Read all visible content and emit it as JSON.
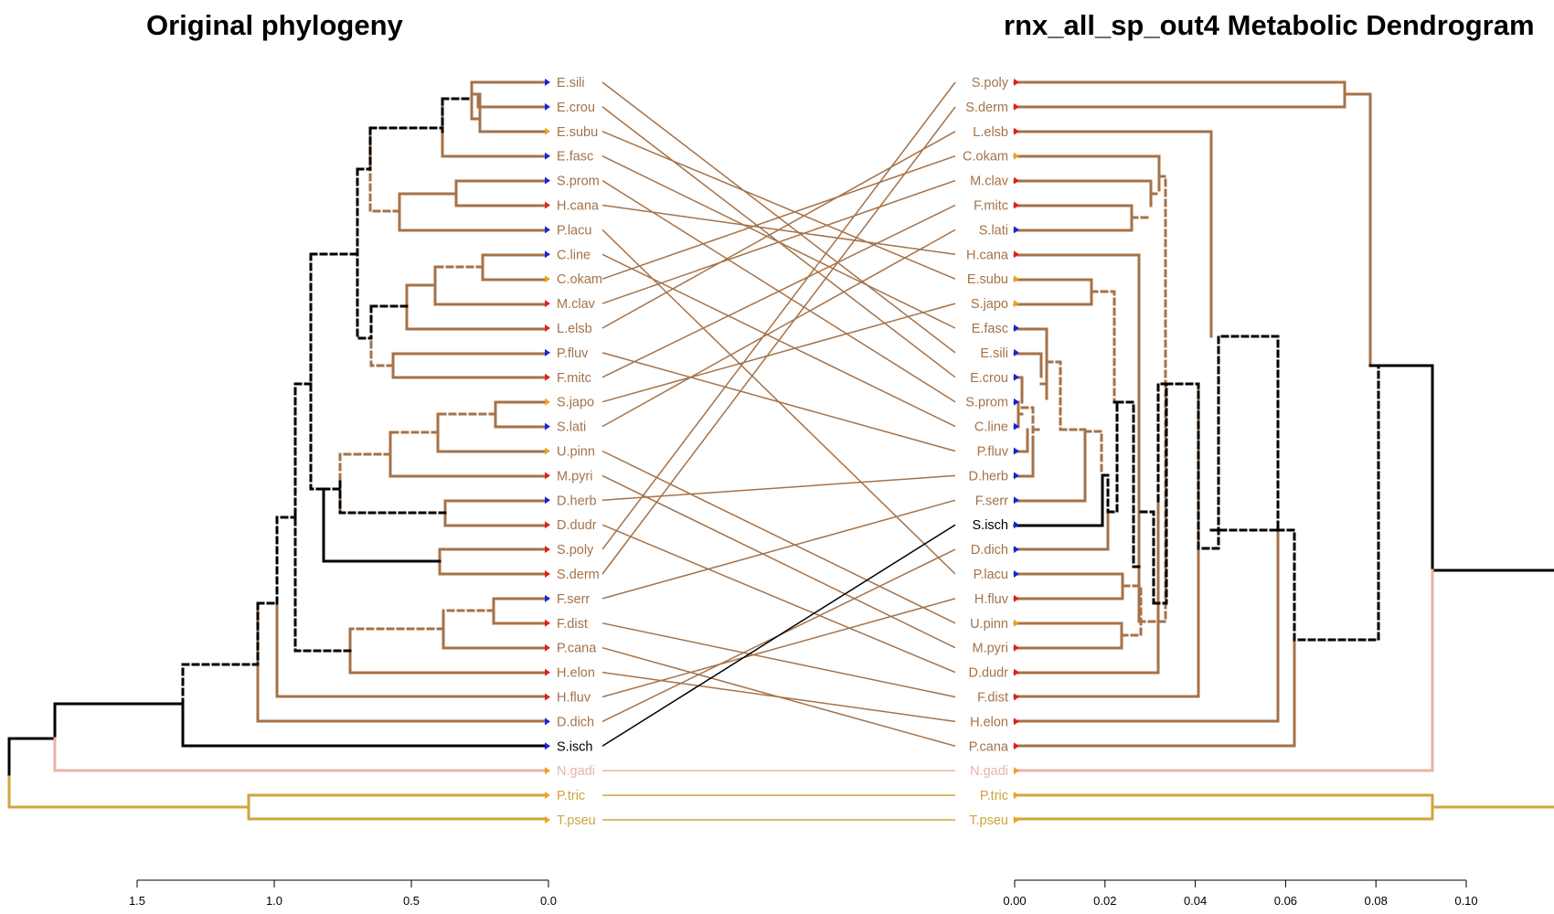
{
  "left": {
    "title": "Original phylogeny",
    "axis_ticks": [
      "1.5",
      "1.0",
      "0.5",
      "0.0"
    ]
  },
  "right": {
    "title": "rnx_all_sp_out4 Metabolic Dendrogram",
    "axis_ticks": [
      "0.00",
      "0.02",
      "0.04",
      "0.06",
      "0.08",
      "0.10"
    ]
  },
  "colors": {
    "main": "#a57248",
    "black": "#000000",
    "pink": "#e8b4a4",
    "gold": "#cda63d",
    "red": "#e0201c",
    "blue": "#1a22d8",
    "orange": "#f0a020"
  },
  "left_taxa": [
    {
      "name": "E.sili",
      "color": "main",
      "dot": "blue"
    },
    {
      "name": "E.crou",
      "color": "main",
      "dot": "blue"
    },
    {
      "name": "E.subu",
      "color": "main",
      "dot": "orange"
    },
    {
      "name": "E.fasc",
      "color": "main",
      "dot": "blue"
    },
    {
      "name": "S.prom",
      "color": "main",
      "dot": "blue"
    },
    {
      "name": "H.cana",
      "color": "main",
      "dot": "red"
    },
    {
      "name": "P.lacu",
      "color": "main",
      "dot": "blue"
    },
    {
      "name": "C.line",
      "color": "main",
      "dot": "blue"
    },
    {
      "name": "C.okam",
      "color": "main",
      "dot": "orange"
    },
    {
      "name": "M.clav",
      "color": "main",
      "dot": "red"
    },
    {
      "name": "L.elsb",
      "color": "main",
      "dot": "red"
    },
    {
      "name": "P.fluv",
      "color": "main",
      "dot": "blue"
    },
    {
      "name": "F.mitc",
      "color": "main",
      "dot": "red"
    },
    {
      "name": "S.japo",
      "color": "main",
      "dot": "orange"
    },
    {
      "name": "S.lati",
      "color": "main",
      "dot": "blue"
    },
    {
      "name": "U.pinn",
      "color": "main",
      "dot": "orange"
    },
    {
      "name": "M.pyri",
      "color": "main",
      "dot": "red"
    },
    {
      "name": "D.herb",
      "color": "main",
      "dot": "blue"
    },
    {
      "name": "D.dudr",
      "color": "main",
      "dot": "red"
    },
    {
      "name": "S.poly",
      "color": "main",
      "dot": "red"
    },
    {
      "name": "S.derm",
      "color": "main",
      "dot": "red"
    },
    {
      "name": "F.serr",
      "color": "main",
      "dot": "blue"
    },
    {
      "name": "F.dist",
      "color": "main",
      "dot": "red"
    },
    {
      "name": "P.cana",
      "color": "main",
      "dot": "red"
    },
    {
      "name": "H.elon",
      "color": "main",
      "dot": "red"
    },
    {
      "name": "H.fluv",
      "color": "main",
      "dot": "red"
    },
    {
      "name": "D.dich",
      "color": "main",
      "dot": "blue"
    },
    {
      "name": "S.isch",
      "color": "black",
      "dot": "blue"
    },
    {
      "name": "N.gadi",
      "color": "pink",
      "dot": "orange"
    },
    {
      "name": "P.tric",
      "color": "gold",
      "dot": "orange"
    },
    {
      "name": "T.pseu",
      "color": "gold",
      "dot": "orange"
    }
  ],
  "right_taxa": [
    {
      "name": "S.poly",
      "color": "main",
      "dot": "red"
    },
    {
      "name": "S.derm",
      "color": "main",
      "dot": "red"
    },
    {
      "name": "L.elsb",
      "color": "main",
      "dot": "red"
    },
    {
      "name": "C.okam",
      "color": "main",
      "dot": "orange"
    },
    {
      "name": "M.clav",
      "color": "main",
      "dot": "red"
    },
    {
      "name": "F.mitc",
      "color": "main",
      "dot": "red"
    },
    {
      "name": "S.lati",
      "color": "main",
      "dot": "blue"
    },
    {
      "name": "H.cana",
      "color": "main",
      "dot": "red"
    },
    {
      "name": "E.subu",
      "color": "main",
      "dot": "orange"
    },
    {
      "name": "S.japo",
      "color": "main",
      "dot": "orange"
    },
    {
      "name": "E.fasc",
      "color": "main",
      "dot": "blue"
    },
    {
      "name": "E.sili",
      "color": "main",
      "dot": "blue"
    },
    {
      "name": "E.crou",
      "color": "main",
      "dot": "blue"
    },
    {
      "name": "S.prom",
      "color": "main",
      "dot": "blue"
    },
    {
      "name": "C.line",
      "color": "main",
      "dot": "blue"
    },
    {
      "name": "P.fluv",
      "color": "main",
      "dot": "blue"
    },
    {
      "name": "D.herb",
      "color": "main",
      "dot": "blue"
    },
    {
      "name": "F.serr",
      "color": "main",
      "dot": "blue"
    },
    {
      "name": "S.isch",
      "color": "black",
      "dot": "blue"
    },
    {
      "name": "D.dich",
      "color": "main",
      "dot": "blue"
    },
    {
      "name": "P.lacu",
      "color": "main",
      "dot": "blue"
    },
    {
      "name": "H.fluv",
      "color": "main",
      "dot": "red"
    },
    {
      "name": "U.pinn",
      "color": "main",
      "dot": "orange"
    },
    {
      "name": "M.pyri",
      "color": "main",
      "dot": "red"
    },
    {
      "name": "D.dudr",
      "color": "main",
      "dot": "red"
    },
    {
      "name": "F.dist",
      "color": "main",
      "dot": "red"
    },
    {
      "name": "H.elon",
      "color": "main",
      "dot": "red"
    },
    {
      "name": "P.cana",
      "color": "main",
      "dot": "red"
    },
    {
      "name": "N.gadi",
      "color": "pink",
      "dot": "orange"
    },
    {
      "name": "P.tric",
      "color": "gold",
      "dot": "orange"
    },
    {
      "name": "T.pseu",
      "color": "gold",
      "dot": "orange"
    }
  ]
}
